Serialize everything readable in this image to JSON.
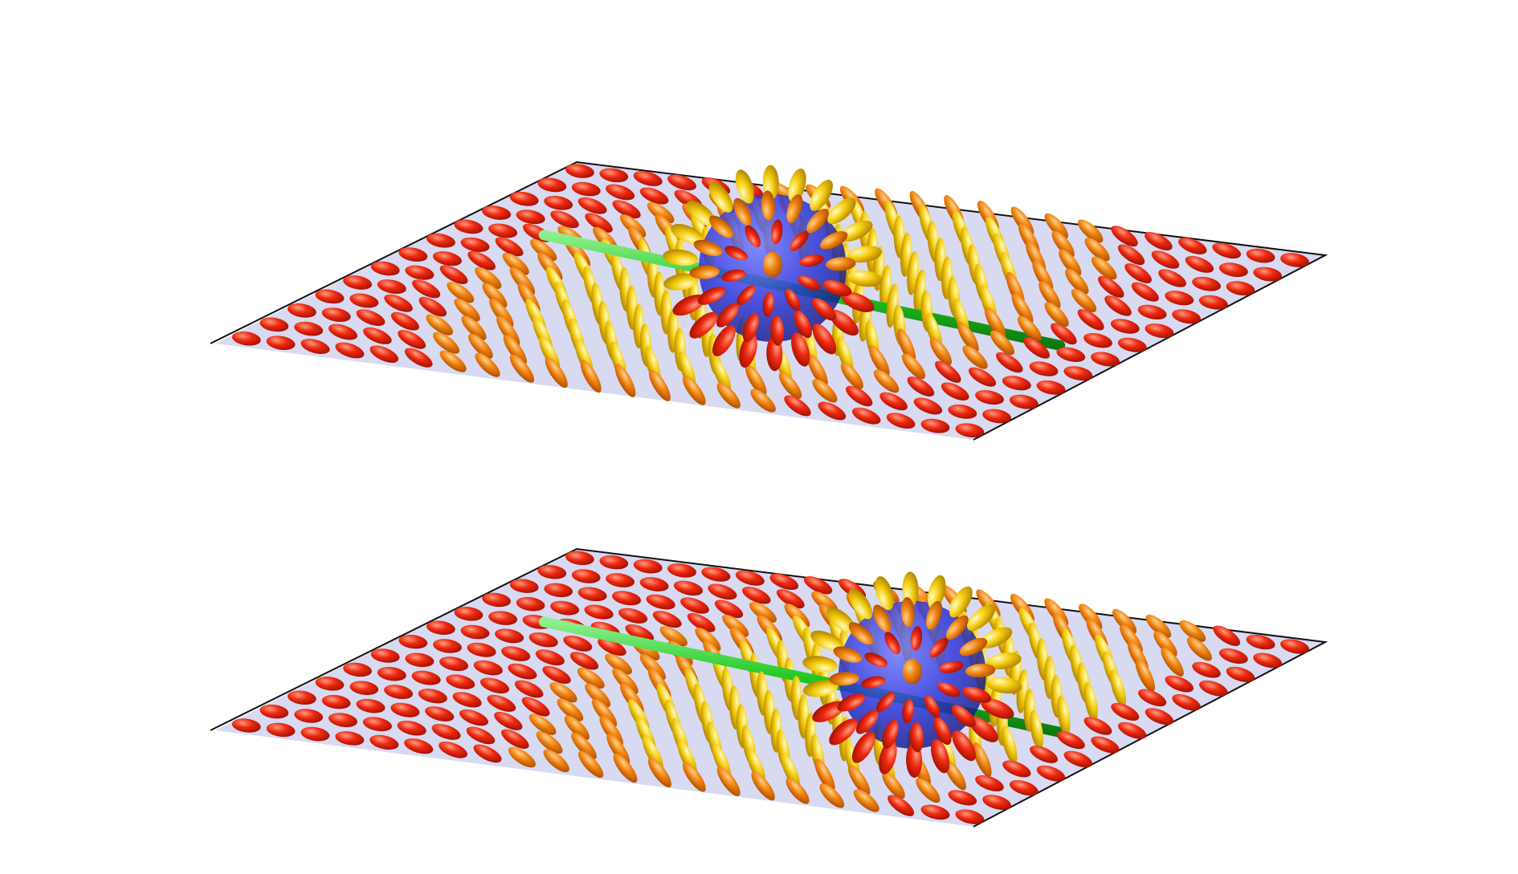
{
  "figure": {
    "panels": [
      {
        "id": "top",
        "colloid_position": "center",
        "green_line_split_at_colloid": true
      },
      {
        "id": "bottom",
        "colloid_position": "displaced-right",
        "green_line_split_at_colloid": true
      }
    ],
    "colors": {
      "background": "#ffffff",
      "sheet_fill": "#b8bce8",
      "frame_edge": "#111111",
      "defect_line": "#2bd12b",
      "colloid": "#2430d8",
      "director_in_plane": "#e82a10",
      "director_mid": "#f28a10",
      "director_tilted": "#f2c810",
      "director_vertical": "#f0e030"
    },
    "grid": {
      "rows": 13,
      "cols": 22
    }
  }
}
